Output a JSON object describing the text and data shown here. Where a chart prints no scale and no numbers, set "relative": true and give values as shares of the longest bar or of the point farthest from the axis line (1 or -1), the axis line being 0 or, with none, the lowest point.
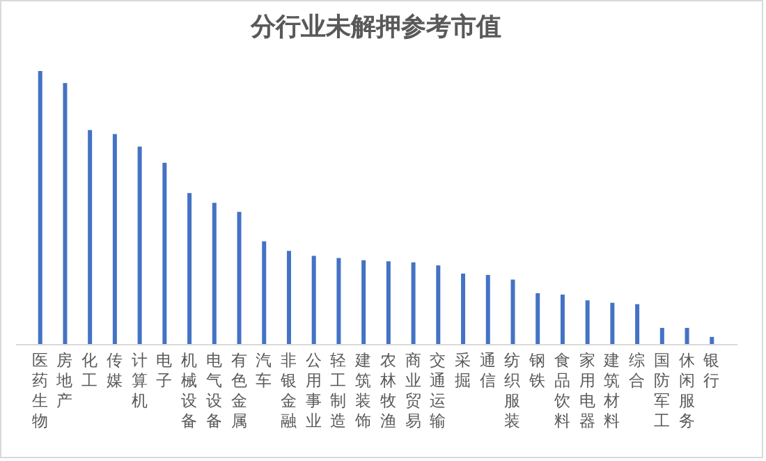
{
  "chart_data": {
    "type": "bar",
    "title": "分行业未解押参考市值",
    "relative": true,
    "color": "#4472c4",
    "categories": [
      "医药生物",
      "房地产",
      "化工",
      "传媒",
      "计算机",
      "电子",
      "机械设备",
      "电气设备",
      "有色金属",
      "汽车",
      "非银金融",
      "公用事业",
      "轻工制造",
      "建筑装饰",
      "农林牧渔",
      "商业贸易",
      "交通运输",
      "采掘",
      "通信",
      "纺织服装",
      "钢铁",
      "食品饮料",
      "家用电器",
      "建筑材料",
      "综合",
      "国防军工",
      "休闲服务",
      "银行"
    ],
    "values": [
      1,
      0.956,
      0.784,
      0.769,
      0.723,
      0.664,
      0.553,
      0.517,
      0.484,
      0.376,
      0.341,
      0.323,
      0.315,
      0.307,
      0.303,
      0.299,
      0.288,
      0.258,
      0.253,
      0.236,
      0.186,
      0.181,
      0.16,
      0.151,
      0.146,
      0.059,
      0.059,
      0.026
    ]
  }
}
